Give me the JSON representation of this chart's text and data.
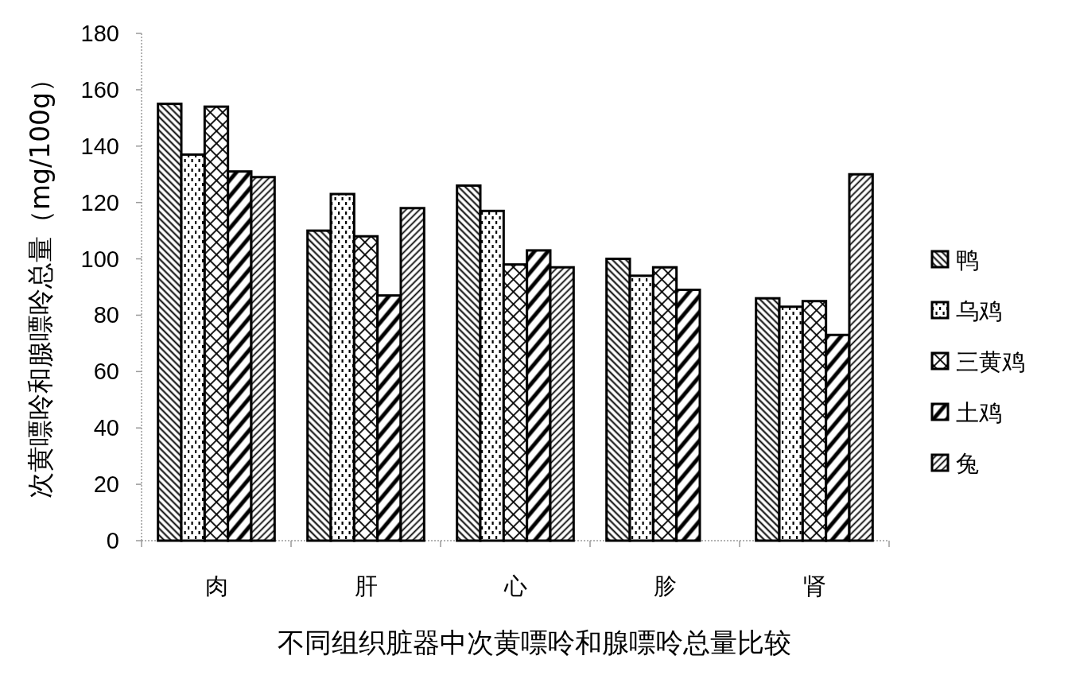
{
  "chart_data": {
    "type": "bar",
    "xlabel": "不同组织脏器中次黄嘌呤和腺嘌呤总量比较",
    "ylabel": "次黄嘌呤和腺嘌呤总量（mg/100g）",
    "categories": [
      "肉",
      "肝",
      "心",
      "胗",
      "肾"
    ],
    "series": [
      {
        "name": "鸭",
        "color": "#000000",
        "values": [
          155,
          110,
          126,
          100,
          86
        ]
      },
      {
        "name": "乌鸡",
        "color": "#000000",
        "values": [
          137,
          123,
          117,
          94,
          83
        ]
      },
      {
        "name": "三黄鸡",
        "color": "#000000",
        "values": [
          154,
          108,
          98,
          97,
          85
        ]
      },
      {
        "name": "土鸡",
        "color": "#000000",
        "values": [
          131,
          87,
          103,
          89,
          73
        ]
      },
      {
        "name": "兔",
        "color": "#000000",
        "values": [
          129,
          118,
          97,
          null,
          130
        ]
      }
    ],
    "ylim": [
      0,
      180
    ],
    "yticks": [
      0,
      20,
      40,
      60,
      80,
      100,
      120,
      140,
      160,
      180
    ],
    "legend": "right"
  }
}
